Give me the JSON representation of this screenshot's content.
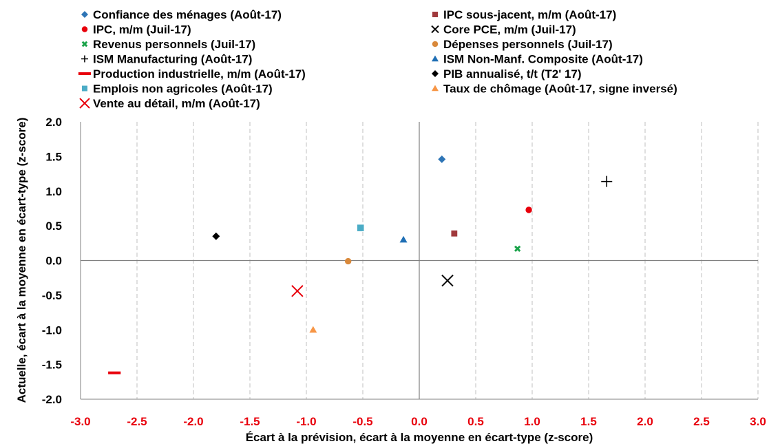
{
  "chart_data": {
    "type": "scatter",
    "xlabel": "Écart à la prévision, écart à la moyenne en écart-type  (z-score)",
    "ylabel": "Actuelle, écart à la moyenne en écart-type  (z-score)",
    "xlim": [
      -3.0,
      3.0
    ],
    "ylim": [
      -2.0,
      2.0
    ],
    "x_ticks": [
      "-3.0",
      "-2.5",
      "-2.0",
      "-1.5",
      "-1.0",
      "-0.5",
      "0.0",
      "0.5",
      "1.0",
      "1.5",
      "2.0",
      "2.5",
      "3.0"
    ],
    "y_ticks": [
      "2.0",
      "1.5",
      "1.0",
      "0.5",
      "0.0",
      "-0.5",
      "-1.0",
      "-1.5",
      "-2.0"
    ],
    "grid": "vertical dashed",
    "legend_position": "top",
    "series": [
      {
        "name": "Confiance des ménages (Août-17)",
        "x": 0.2,
        "y": 1.46,
        "marker": "diamond",
        "color": "#2e75b6"
      },
      {
        "name": "IPC sous-jacent, m/m (Août-17)",
        "x": 0.31,
        "y": 0.39,
        "marker": "square",
        "color": "#a0393c"
      },
      {
        "name": "IPC, m/m (Juil-17)",
        "x": 0.97,
        "y": 0.73,
        "marker": "circle",
        "color": "#e8000b"
      },
      {
        "name": "Core PCE, m/m (Juil-17)",
        "x": 0.25,
        "y": -0.29,
        "marker": "x",
        "color": "#000000"
      },
      {
        "name": "Revenus personnels (Juil-17)",
        "x": 0.87,
        "y": 0.17,
        "marker": "small-x",
        "color": "#1aa34a"
      },
      {
        "name": "Dépenses personnels (Juil-17)",
        "x": -0.63,
        "y": -0.01,
        "marker": "circle",
        "color": "#d9893b"
      },
      {
        "name": "ISM Manufacturing (Août-17)",
        "x": 1.66,
        "y": 1.14,
        "marker": "plus",
        "color": "#000000"
      },
      {
        "name": "ISM Non-Manf. Composite (Août-17)",
        "x": -0.14,
        "y": 0.3,
        "marker": "triangle",
        "color": "#1f6fb5"
      },
      {
        "name": "Production industrielle, m/m (Août-17)",
        "x": -2.7,
        "y": -1.62,
        "marker": "dash",
        "color": "#e8000b"
      },
      {
        "name": "PIB annualisé, t/t (T2' 17)",
        "x": -1.8,
        "y": 0.35,
        "marker": "diamond",
        "color": "#000000"
      },
      {
        "name": "Emplois non agricoles (Août-17)",
        "x": -0.52,
        "y": 0.47,
        "marker": "square",
        "color": "#4bacc6"
      },
      {
        "name": "Taux de chômage (Août-17, signe inversé)",
        "x": -0.94,
        "y": -1.0,
        "marker": "triangle",
        "color": "#f79646"
      },
      {
        "name": "Vente au détail, m/m (Août-17)",
        "x": -1.08,
        "y": -0.44,
        "marker": "x",
        "color": "#e8000b"
      }
    ]
  }
}
